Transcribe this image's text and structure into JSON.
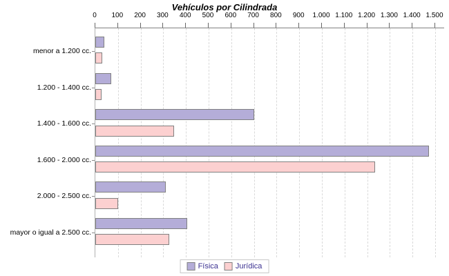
{
  "chart_data": {
    "type": "bar",
    "orientation": "horizontal",
    "title": "Vehículos por Cilindrada",
    "categories": [
      "menor a 1.200 cc.",
      "1.200 - 1.400 cc.",
      "1.400 - 1.600 cc.",
      "1.600 - 2.000 cc.",
      "2.000 - 2.500 cc.",
      "mayor o igual a 2.500 cc."
    ],
    "series": [
      {
        "name": "Física",
        "color": "#b4add8",
        "border_color": "#808080",
        "values": [
          35,
          65,
          695,
          1465,
          305,
          400
        ]
      },
      {
        "name": "Jurídica",
        "color": "#fcd0d0",
        "border_color": "#808080",
        "values": [
          25,
          22,
          340,
          1230,
          95,
          320
        ]
      }
    ],
    "x_axis": {
      "position": "top",
      "min": 0,
      "max": 1500,
      "tick_step": 100,
      "tick_labels": [
        "0",
        "100",
        "200",
        "300",
        "400",
        "500",
        "600",
        "700",
        "800",
        "900",
        "1.000",
        "1.100",
        "1.200",
        "1.300",
        "1.400",
        "1.500"
      ]
    },
    "grid": "vertical-dashed",
    "legend_position": "bottom-center"
  },
  "colors": {
    "legend_text": "#3b3191",
    "gridline": "#d9d9d9",
    "axis_line": "#808080",
    "title_text": "#000000"
  }
}
